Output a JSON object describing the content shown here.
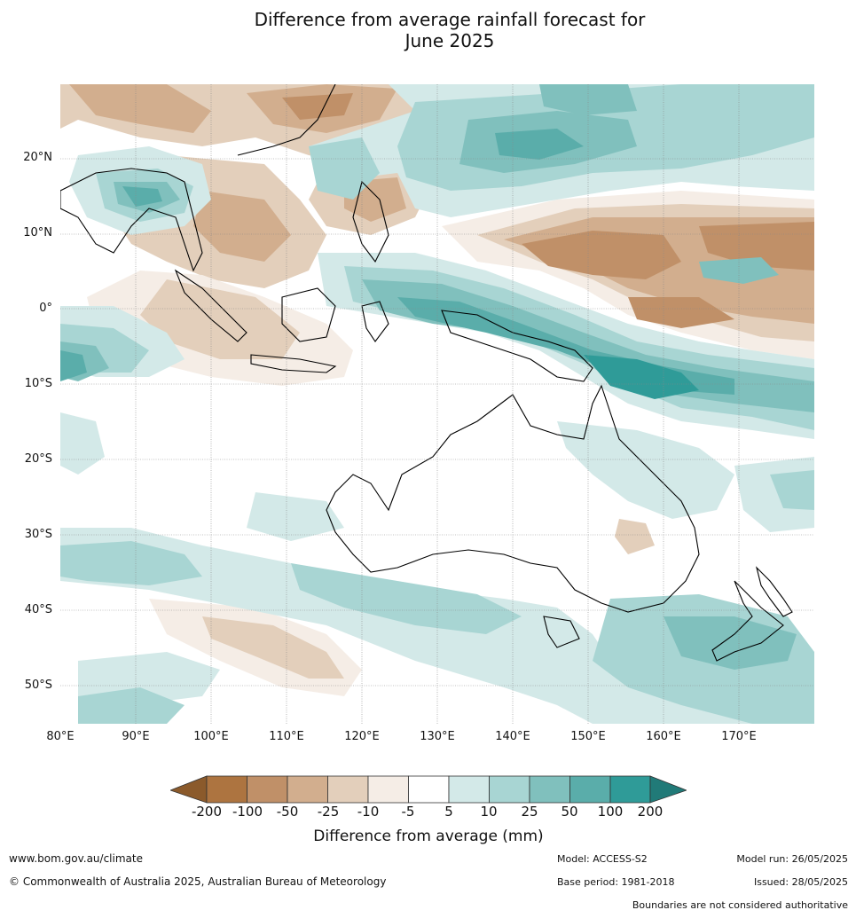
{
  "title_line1": "Difference from average rainfall forecast for",
  "title_line2": "June 2025",
  "lat_labels": [
    "20°N",
    "10°N",
    "0°",
    "10°S",
    "20°S",
    "30°S",
    "40°S",
    "50°S"
  ],
  "lon_labels": [
    "80°E",
    "90°E",
    "100°E",
    "110°E",
    "120°E",
    "130°E",
    "140°E",
    "150°E",
    "160°E",
    "170°E"
  ],
  "colorbar": {
    "ticks": [
      "-200",
      "-100",
      "-50",
      "-25",
      "-10",
      "-5",
      "5",
      "10",
      "25",
      "50",
      "100",
      "200"
    ],
    "colors": [
      "#8b5a2b",
      "#ad7440",
      "#c09068",
      "#d2ae8e",
      "#e3cfbb",
      "#f5ede6",
      "#ffffff",
      "#d3e9e8",
      "#a8d5d3",
      "#80c0bd",
      "#5aadaa",
      "#2f9b98",
      "#217a78"
    ],
    "label": "Difference from average (mm)"
  },
  "footer": {
    "website": "www.bom.gov.au/climate",
    "copyright": "© Commonwealth of Australia 2025, Australian Bureau of Meteorology",
    "model": "Model: ACCESS-S2",
    "base_period": "Base period: 1981-2018",
    "model_run": "Model run: 26/05/2025",
    "issued": "Issued: 28/05/2025",
    "disclaimer": "Boundaries are not considered authoritative"
  }
}
